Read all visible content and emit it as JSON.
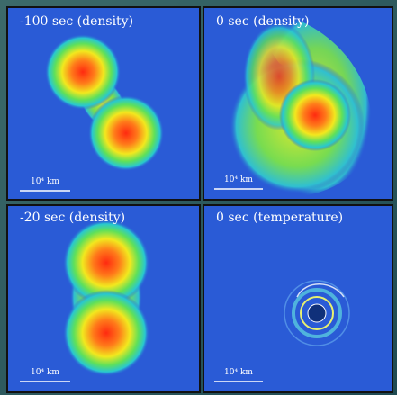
{
  "panels": [
    {
      "label": "-100 sec (density)",
      "scale": "10⁴ km"
    },
    {
      "label": "0 sec (density)",
      "scale": "10⁴ km"
    },
    {
      "label": "-20 sec (density)",
      "scale": "10⁴ km"
    },
    {
      "label": "0 sec (temperature)",
      "scale": "10⁴ km"
    }
  ]
}
